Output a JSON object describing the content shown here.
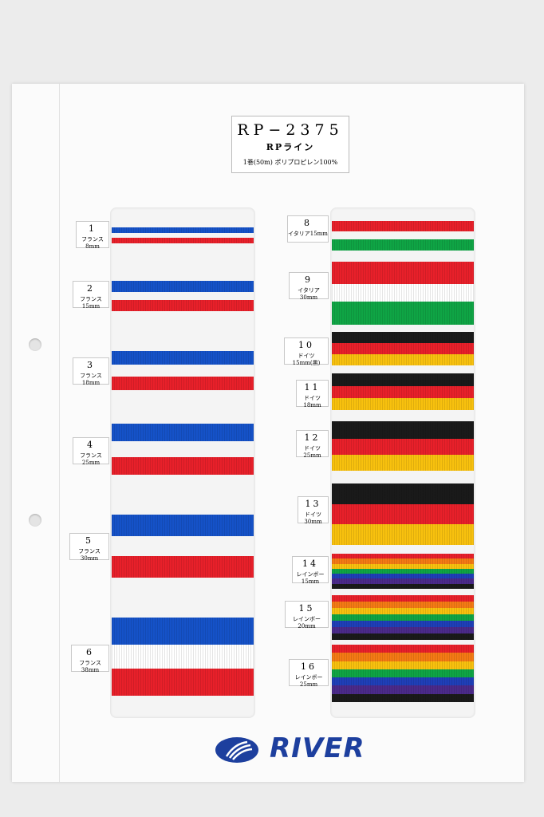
{
  "header": {
    "title": "RP−2375",
    "subtitle": "RPライン",
    "spec": "1巻(50m) ポリプロピレン100%"
  },
  "samples": [
    {
      "number": "1",
      "label": "フランス8mm"
    },
    {
      "number": "2",
      "label": "フランス15mm"
    },
    {
      "number": "3",
      "label": "フランス18mm"
    },
    {
      "number": "4",
      "label": "フランス25mm"
    },
    {
      "number": "5",
      "label": "フランス30mm"
    },
    {
      "number": "6",
      "label": "フランス38mm"
    },
    {
      "number": "8",
      "label": "イタリア15mm"
    },
    {
      "number": "9",
      "label": "イタリア30mm"
    },
    {
      "number": "10",
      "label": "ドイツ15mm(黒)"
    },
    {
      "number": "11",
      "label": "ドイツ18mm"
    },
    {
      "number": "12",
      "label": "ドイツ25mm"
    },
    {
      "number": "13",
      "label": "ドイツ30mm"
    },
    {
      "number": "14",
      "label": "レインボー15mm"
    },
    {
      "number": "15",
      "label": "レインボー20mm"
    },
    {
      "number": "16",
      "label": "レインボー25mm"
    }
  ],
  "brand": "RIVER"
}
